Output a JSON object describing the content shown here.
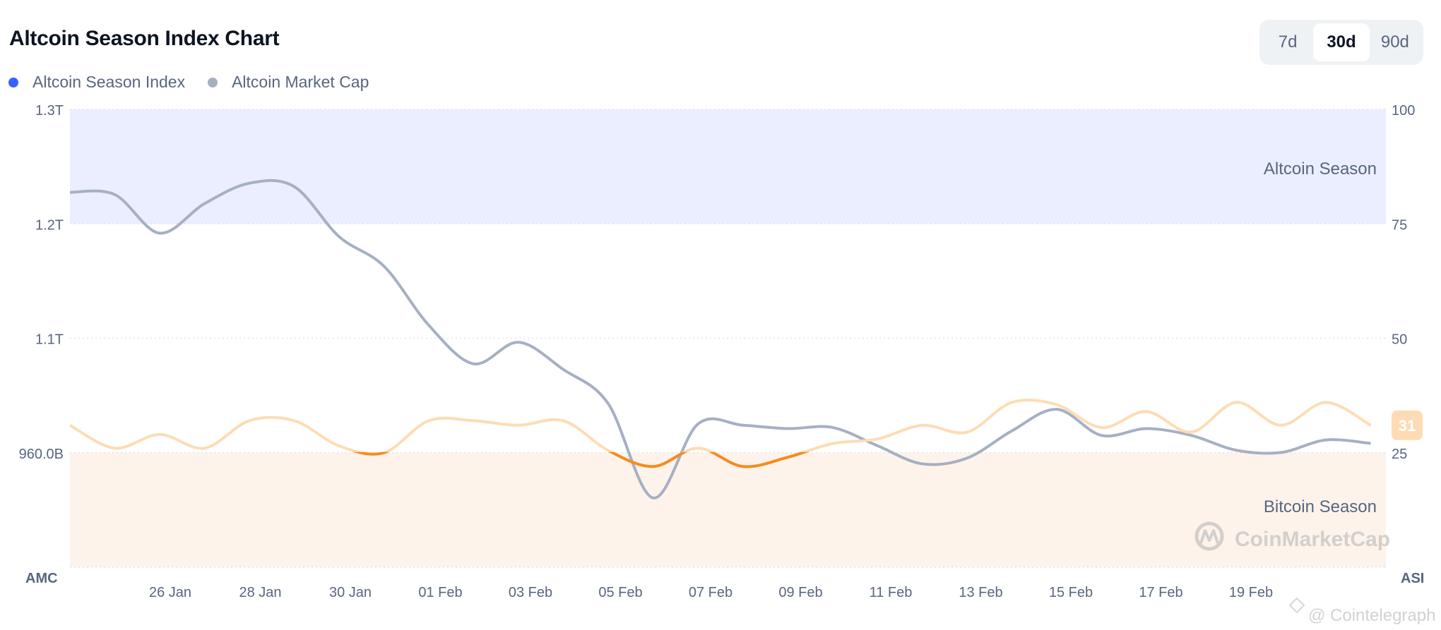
{
  "header": {
    "title": "Altcoin Season Index Chart",
    "range_buttons": [
      {
        "label": "7d",
        "active": false
      },
      {
        "label": "30d",
        "active": true
      },
      {
        "label": "90d",
        "active": false
      }
    ]
  },
  "watermarks": {
    "coinmarketcap": "CoinMarketCap",
    "cointelegraph": "@ Cointelegraph"
  },
  "chart_data": {
    "type": "line",
    "title": "Altcoin Season Index Chart",
    "legend": [
      {
        "name": "Altcoin Season Index",
        "color": "#3861fb"
      },
      {
        "name": "Altcoin Market Cap",
        "color": "#a6b0c3"
      }
    ],
    "legend_placement": "top-left",
    "x": [
      "24 Jan",
      "25 Jan",
      "26 Jan",
      "27 Jan",
      "28 Jan",
      "29 Jan",
      "30 Jan",
      "31 Jan",
      "01 Feb",
      "02 Feb",
      "03 Feb",
      "04 Feb",
      "05 Feb",
      "06 Feb",
      "07 Feb",
      "08 Feb",
      "09 Feb",
      "10 Feb",
      "11 Feb",
      "12 Feb",
      "13 Feb",
      "14 Feb",
      "15 Feb",
      "16 Feb",
      "17 Feb",
      "18 Feb",
      "19 Feb",
      "20 Feb",
      "21 Feb",
      "22 Feb"
    ],
    "x_tick_labels": [
      "26 Jan",
      "28 Jan",
      "30 Jan",
      "01 Feb",
      "03 Feb",
      "05 Feb",
      "07 Feb",
      "09 Feb",
      "11 Feb",
      "13 Feb",
      "15 Feb",
      "17 Feb",
      "19 Feb"
    ],
    "series": [
      {
        "name": "Altcoin Season Index",
        "axis": "right",
        "color_above_25": "#fddcb5",
        "color_below_25": "#f68b1f",
        "values": [
          31,
          26,
          29,
          26,
          32,
          32,
          26.5,
          25,
          32,
          32,
          31,
          32,
          25.5,
          22,
          26,
          22,
          24,
          27,
          28,
          31,
          29.5,
          36,
          35.5,
          30.5,
          34,
          29.5,
          36,
          31,
          36,
          31
        ]
      },
      {
        "name": "Altcoin Market Cap",
        "axis": "left",
        "unit": "B USD",
        "color": "#a6b0c3",
        "values": [
          1227,
          1225,
          1191,
          1217,
          1235,
          1232,
          1188,
          1162,
          1110,
          1076,
          1095,
          1071,
          1041,
          958,
          1023,
          1022,
          1019,
          1020,
          1004,
          988,
          993,
          1017,
          1036,
          1013,
          1019,
          1013,
          1000,
          998,
          1009,
          1006
        ]
      }
    ],
    "right_axis": {
      "name": "ASI",
      "ylim": [
        0,
        100
      ],
      "ticks": [
        100,
        75,
        50,
        25
      ]
    },
    "left_axis": {
      "name": "AMC",
      "ylim_billions": [
        897,
        1300
      ],
      "tick_labels": [
        "1.3T",
        "1.2T",
        "1.1T",
        "960.0B"
      ]
    },
    "bands": [
      {
        "label": "Altcoin Season",
        "from": 75,
        "to": 100,
        "color": "#ebeefe"
      },
      {
        "label": "Bitcoin Season",
        "from": 0,
        "to": 25,
        "color": "#fef3ea"
      }
    ],
    "current_value_badge": "31",
    "grid": "horizontal-dotted"
  }
}
